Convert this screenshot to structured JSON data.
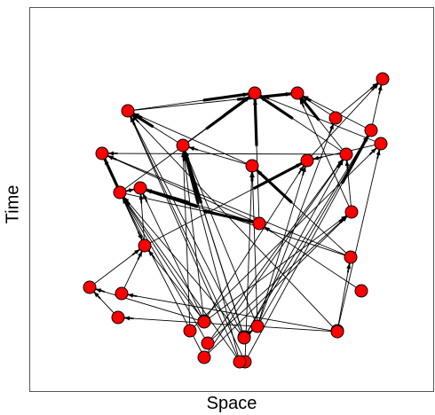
{
  "axes": {
    "xlabel": "Space",
    "ylabel": "Time"
  },
  "colors": {
    "node_fill": "#ff0000",
    "node_stroke": "#000000",
    "edge": "#000000"
  },
  "nodes": [
    {
      "id": "n1"
    },
    {
      "id": "n2"
    },
    {
      "id": "n3"
    },
    {
      "id": "n4"
    },
    {
      "id": "n5"
    },
    {
      "id": "n6"
    },
    {
      "id": "n7"
    },
    {
      "id": "n8"
    },
    {
      "id": "n9"
    },
    {
      "id": "n10"
    },
    {
      "id": "n11"
    },
    {
      "id": "n12"
    },
    {
      "id": "n13"
    },
    {
      "id": "n14"
    },
    {
      "id": "n15"
    },
    {
      "id": "n16"
    },
    {
      "id": "n17"
    },
    {
      "id": "n18"
    },
    {
      "id": "n19"
    },
    {
      "id": "n20"
    },
    {
      "id": "n21"
    },
    {
      "id": "n22"
    },
    {
      "id": "n23"
    },
    {
      "id": "n24"
    },
    {
      "id": "n25"
    },
    {
      "id": "n26"
    },
    {
      "id": "n27"
    },
    {
      "id": "n28"
    },
    {
      "id": "n29"
    },
    {
      "id": "n30"
    },
    {
      "id": "n31"
    },
    {
      "id": "n32"
    },
    {
      "id": "n33"
    },
    {
      "id": "n34"
    }
  ],
  "edges": [
    {
      "from": "n25",
      "to": "n4",
      "bold": false
    },
    {
      "from": "n25",
      "to": "n6",
      "bold": false
    },
    {
      "from": "n25",
      "to": "n7",
      "bold": false
    },
    {
      "from": "n25",
      "to": "n9",
      "bold": false
    },
    {
      "from": "n25",
      "to": "n11",
      "bold": false
    },
    {
      "from": "n28",
      "to": "n25",
      "bold": false
    },
    {
      "from": "n28",
      "to": "n6",
      "bold": false
    },
    {
      "from": "n28",
      "to": "n7",
      "bold": false
    },
    {
      "from": "n26",
      "to": "n7",
      "bold": false
    },
    {
      "from": "n26",
      "to": "n8",
      "bold": false
    },
    {
      "from": "n24",
      "to": "n8",
      "bold": false
    },
    {
      "from": "n24",
      "to": "n18",
      "bold": false
    },
    {
      "from": "n4",
      "to": "n1",
      "bold": false
    },
    {
      "from": "n6",
      "to": "n1",
      "bold": false
    },
    {
      "from": "n7",
      "to": "n5",
      "bold": true
    },
    {
      "from": "n11",
      "to": "n5",
      "bold": false
    },
    {
      "from": "n11",
      "to": "n7",
      "bold": false
    },
    {
      "from": "n30",
      "to": "n5",
      "bold": false
    },
    {
      "from": "n30",
      "to": "n6",
      "bold": true
    },
    {
      "from": "n30",
      "to": "n11",
      "bold": false
    },
    {
      "from": "n32",
      "to": "n5",
      "bold": false
    },
    {
      "from": "n32",
      "to": "n7",
      "bold": true
    },
    {
      "from": "n32",
      "to": "n14",
      "bold": false
    },
    {
      "from": "n34",
      "to": "n5",
      "bold": false
    },
    {
      "from": "n34",
      "to": "n20",
      "bold": false
    },
    {
      "from": "n34",
      "to": "n22",
      "bold": false
    },
    {
      "from": "n33",
      "to": "n5",
      "bold": false
    },
    {
      "from": "n33",
      "to": "n7",
      "bold": true
    },
    {
      "from": "n33",
      "to": "n14",
      "bold": false
    },
    {
      "from": "n33",
      "to": "n10",
      "bold": false
    },
    {
      "from": "n31",
      "to": "n7",
      "bold": false
    },
    {
      "from": "n31",
      "to": "n14",
      "bold": false
    },
    {
      "from": "n31",
      "to": "n15",
      "bold": false
    },
    {
      "from": "n31",
      "to": "n19",
      "bold": false
    },
    {
      "from": "n29",
      "to": "n15",
      "bold": false
    },
    {
      "from": "n29",
      "to": "n14",
      "bold": false
    },
    {
      "from": "n29",
      "to": "n10",
      "bold": false
    },
    {
      "from": "n27",
      "to": "n10",
      "bold": false
    },
    {
      "from": "n27",
      "to": "n14",
      "bold": false
    },
    {
      "from": "n27",
      "to": "n15",
      "bold": false
    },
    {
      "from": "n5",
      "to": "n2",
      "bold": true
    },
    {
      "from": "n5",
      "to": "n3",
      "bold": true
    },
    {
      "from": "n7",
      "to": "n3",
      "bold": true
    },
    {
      "from": "n10",
      "to": "n2",
      "bold": true
    },
    {
      "from": "n10",
      "to": "n3",
      "bold": true
    },
    {
      "from": "n10",
      "to": "n12",
      "bold": false
    },
    {
      "from": "n14",
      "to": "n3",
      "bold": true
    },
    {
      "from": "n14",
      "to": "n13",
      "bold": false
    },
    {
      "from": "n14",
      "to": "n16",
      "bold": true
    },
    {
      "from": "n14",
      "to": "n17",
      "bold": false
    },
    {
      "from": "n15",
      "to": "n2",
      "bold": false
    },
    {
      "from": "n15",
      "to": "n10",
      "bold": false
    },
    {
      "from": "n16",
      "to": "n3",
      "bold": true
    },
    {
      "from": "n16",
      "to": "n12",
      "bold": false
    },
    {
      "from": "n16",
      "to": "n13",
      "bold": true
    },
    {
      "from": "n17",
      "to": "n9",
      "bold": true
    },
    {
      "from": "n17",
      "to": "n12",
      "bold": true
    },
    {
      "from": "n17",
      "to": "n13",
      "bold": false
    },
    {
      "from": "n18",
      "to": "n11",
      "bold": true
    },
    {
      "from": "n18",
      "to": "n12",
      "bold": false
    },
    {
      "from": "n18",
      "to": "n13",
      "bold": true
    },
    {
      "from": "n19",
      "to": "n17",
      "bold": false
    },
    {
      "from": "n20",
      "to": "n17",
      "bold": false
    },
    {
      "from": "n21",
      "to": "n16",
      "bold": false
    },
    {
      "from": "n22",
      "to": "n19",
      "bold": false
    },
    {
      "from": "n23",
      "to": "n9",
      "bold": false
    },
    {
      "from": "n23",
      "to": "n13",
      "bold": false
    },
    {
      "from": "n23",
      "to": "n17",
      "bold": false
    },
    {
      "from": "n8",
      "to": "n3",
      "bold": false
    },
    {
      "from": "n8",
      "to": "n9",
      "bold": false
    },
    {
      "from": "n6",
      "to": "n2",
      "bold": false
    },
    {
      "from": "n4",
      "to": "n2",
      "bold": false
    },
    {
      "from": "n9",
      "to": "n1",
      "bold": false
    }
  ]
}
